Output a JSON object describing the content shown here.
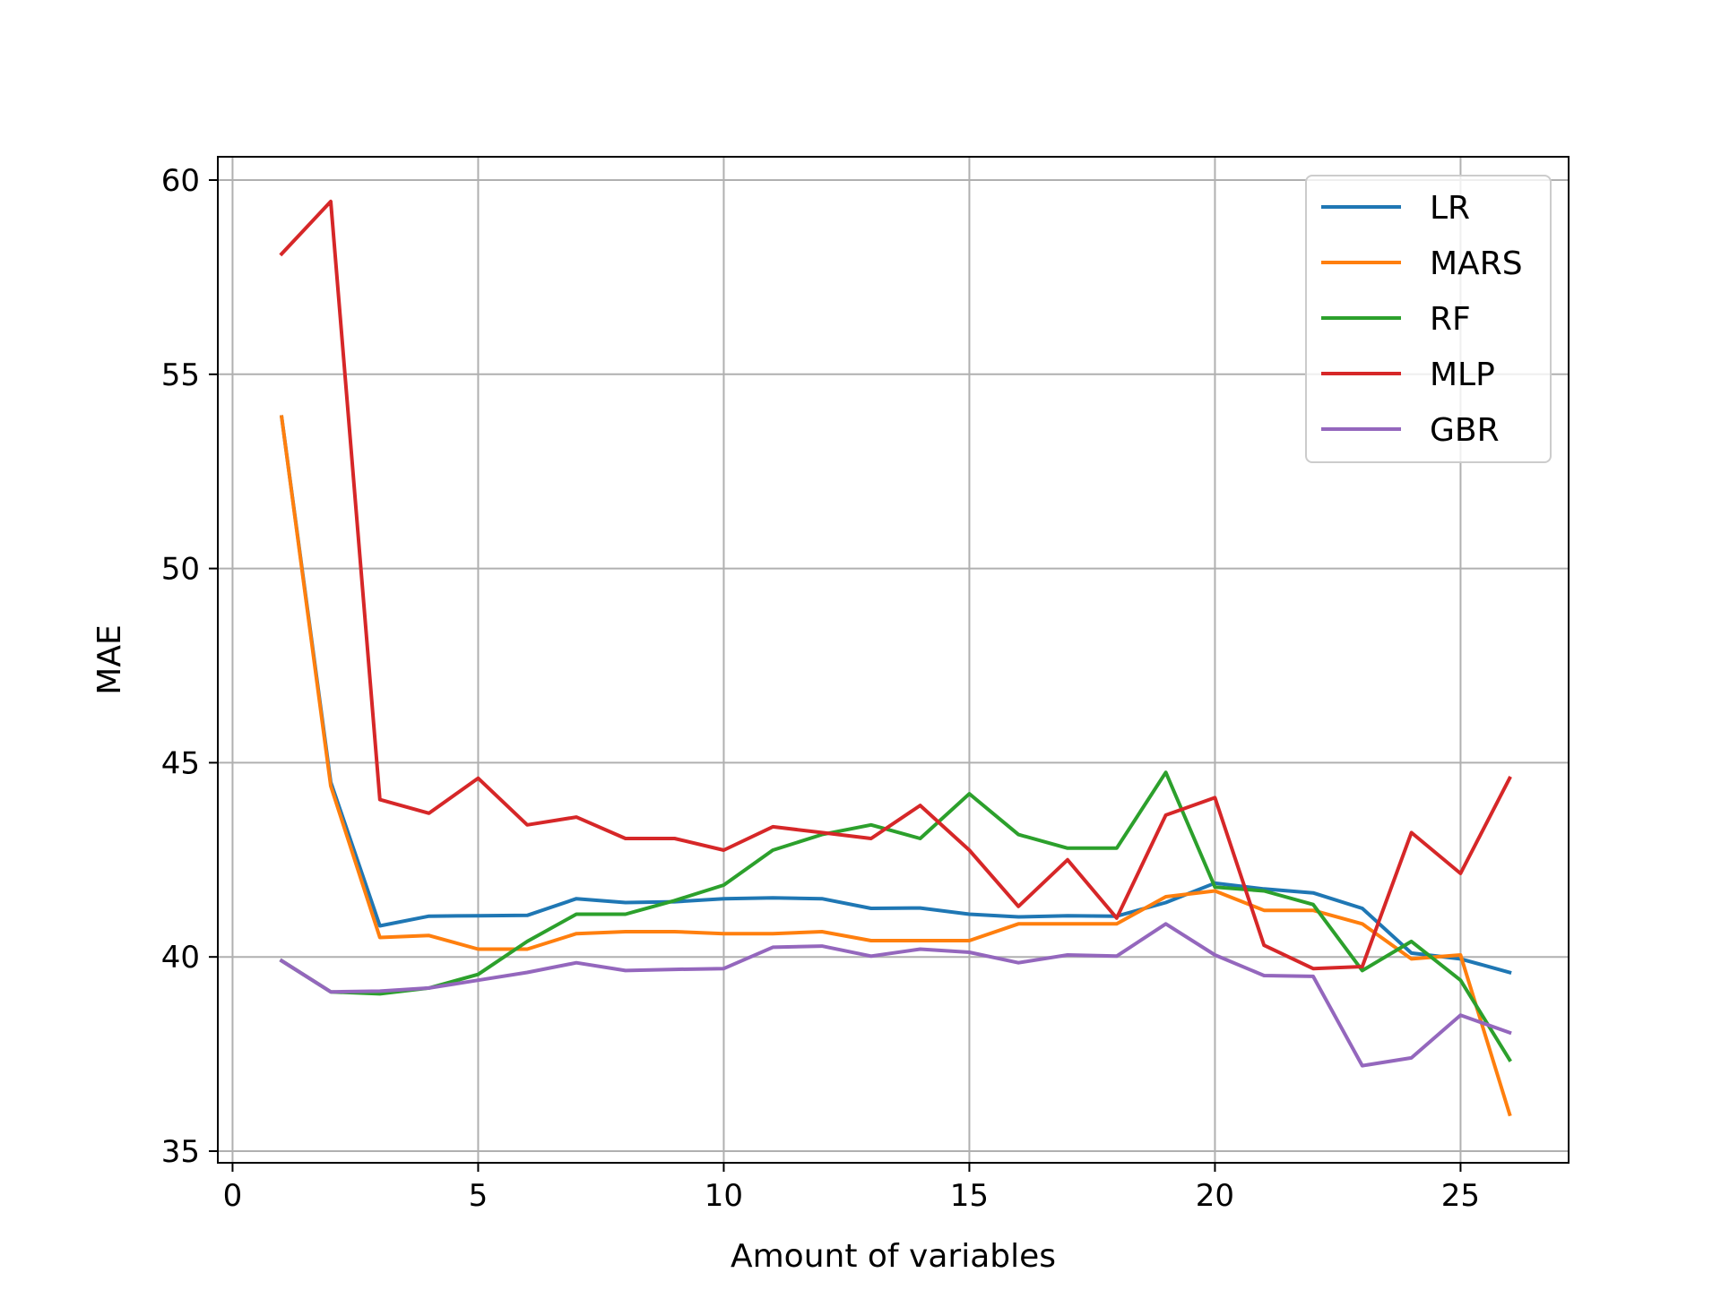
{
  "chart_data": {
    "type": "line",
    "title": "",
    "xlabel": "Amount of variables",
    "ylabel": "MAE",
    "xlim": [
      -0.3,
      27.2
    ],
    "ylim": [
      34.7,
      60.6
    ],
    "xticks": [
      0,
      5,
      10,
      15,
      20,
      25
    ],
    "yticks": [
      35,
      40,
      45,
      50,
      55,
      60
    ],
    "grid": true,
    "legend_position": "top-right",
    "x": [
      1,
      2,
      3,
      4,
      5,
      6,
      7,
      8,
      9,
      10,
      11,
      12,
      13,
      14,
      15,
      16,
      17,
      18,
      19,
      20,
      21,
      22,
      23,
      24,
      25,
      26
    ],
    "series": [
      {
        "name": "LR",
        "color": "#1f77b4",
        "values": [
          53.9,
          44.5,
          40.8,
          41.05,
          41.06,
          41.07,
          41.5,
          41.4,
          41.42,
          41.5,
          41.52,
          41.5,
          41.25,
          41.26,
          41.1,
          41.03,
          41.06,
          41.05,
          41.4,
          41.9,
          41.75,
          41.65,
          41.25,
          40.1,
          39.95,
          39.6
        ]
      },
      {
        "name": "MARS",
        "color": "#ff7f0e",
        "values": [
          53.9,
          44.4,
          40.5,
          40.55,
          40.2,
          40.2,
          40.6,
          40.65,
          40.65,
          40.6,
          40.6,
          40.65,
          40.42,
          40.42,
          40.42,
          40.85,
          40.85,
          40.85,
          41.55,
          41.7,
          41.2,
          41.2,
          40.85,
          39.95,
          40.05,
          35.95
        ]
      },
      {
        "name": "RF",
        "color": "#2ca02c",
        "values": [
          39.9,
          39.1,
          39.05,
          39.2,
          39.55,
          40.4,
          41.1,
          41.1,
          41.45,
          41.85,
          42.75,
          43.15,
          43.4,
          43.05,
          44.2,
          43.15,
          42.8,
          42.8,
          44.75,
          41.8,
          41.7,
          41.35,
          39.65,
          40.4,
          39.4,
          37.35
        ]
      },
      {
        "name": "MLP",
        "color": "#d62728",
        "values": [
          58.1,
          59.45,
          44.05,
          43.7,
          44.6,
          43.4,
          43.6,
          43.05,
          43.05,
          42.75,
          43.35,
          43.2,
          43.05,
          43.9,
          42.75,
          41.3,
          42.5,
          41.0,
          43.65,
          44.1,
          40.3,
          39.7,
          39.75,
          43.2,
          42.15,
          44.6
        ]
      },
      {
        "name": "GBR",
        "color": "#9467bd",
        "values": [
          39.9,
          39.1,
          39.12,
          39.2,
          39.4,
          39.6,
          39.85,
          39.65,
          39.68,
          39.7,
          40.25,
          40.28,
          40.02,
          40.2,
          40.12,
          39.85,
          40.05,
          40.02,
          40.85,
          40.05,
          39.52,
          39.5,
          37.2,
          37.4,
          38.5,
          38.05
        ]
      }
    ]
  }
}
